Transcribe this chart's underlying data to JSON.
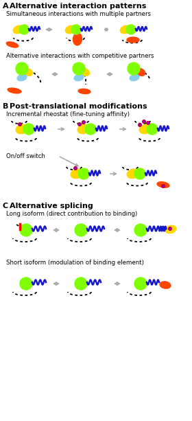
{
  "title_A": "Alternative interaction patterns",
  "title_B": "Post-translational modifications",
  "title_C": "Alternative splicing",
  "subtitle_A1": "Simultaneous interactions with multiple partners",
  "subtitle_A2": "Alternative interactions with competitive partners",
  "subtitle_B1": "Incremental rheostat (fine-tuning affinity)",
  "subtitle_B2": "On/off switch",
  "subtitle_C1": "Long isoform (direct contribution to binding)",
  "subtitle_C2": "Short isoform (modulation of binding element)",
  "label_A": "A",
  "label_B": "B",
  "label_C": "C",
  "colors": {
    "yellow": "#FFD700",
    "lime": "#7FFF00",
    "orange_red": "#FF4500",
    "cyan_blue": "#87CEEB",
    "blue_wave": "#1515CC",
    "purple": "#9932CC",
    "red": "#CC0000",
    "gray_arrow": "#AAAAAA",
    "black": "#000000",
    "bg": "#FFFFFF"
  }
}
